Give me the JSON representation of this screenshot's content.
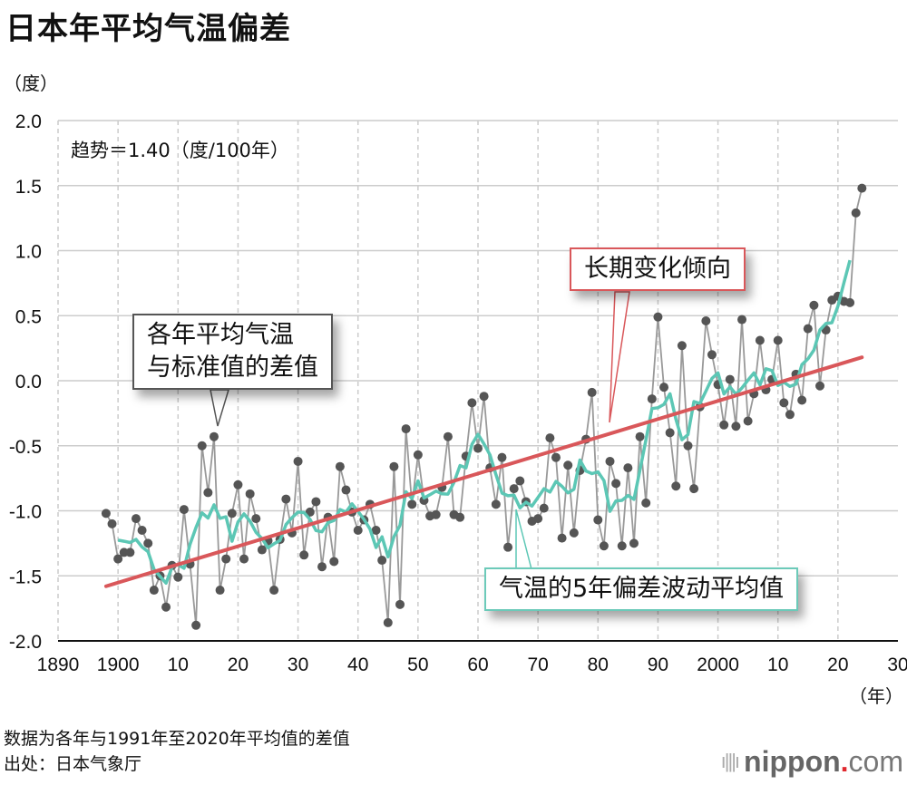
{
  "title": "日本年平均气温偏差",
  "y_unit": "（度）",
  "x_unit": "（年）",
  "notes": [
    "数据为各年与1991年至2020年平均值的差值",
    "出处：日本气象厅"
  ],
  "logo": {
    "name": "nippon",
    "dot": ".",
    "suffix": "com",
    "dot_color": "#e0282e"
  },
  "colors": {
    "points": "#555555",
    "annual_line": "#999999",
    "moving_avg": "#5cc7b5",
    "trend": "#d9575a",
    "grid": "#cccccc"
  },
  "chart_data": {
    "type": "line",
    "title": "日本年平均气温偏差",
    "xlabel": "（年）",
    "ylabel": "（度）",
    "xlim": [
      1890,
      2030
    ],
    "ylim": [
      -2.0,
      2.0
    ],
    "grid": true,
    "x_ticks": [
      1890,
      1900,
      1910,
      1920,
      1930,
      1940,
      1950,
      1960,
      1970,
      1980,
      1990,
      2000,
      2010,
      2020,
      2030
    ],
    "x_tick_labels": [
      "1890",
      "1900",
      "10",
      "20",
      "30",
      "40",
      "50",
      "60",
      "70",
      "80",
      "90",
      "2000",
      "10",
      "20",
      "30"
    ],
    "y_ticks": [
      2.0,
      1.5,
      1.0,
      0.5,
      0.0,
      -0.5,
      -1.0,
      -1.5,
      -2.0
    ],
    "y_tick_labels": [
      "2.0",
      "1.5",
      "1.0",
      "0.5",
      "0.0",
      "-0.5",
      "-1.0",
      "-1.5",
      "-2.0"
    ],
    "trend_annotation": "趋势＝1.40（度/100年）",
    "trend": {
      "rate_per_100yr": 1.4,
      "start": [
        1898,
        -1.58
      ],
      "end": [
        2024,
        0.18
      ]
    },
    "moving_average_window": 5,
    "x_start": 1898,
    "series": [
      {
        "name": "各年平均气温与标准值的差值",
        "values": [
          -1.02,
          -1.1,
          -1.37,
          -1.32,
          -1.32,
          -1.06,
          -1.15,
          -1.25,
          -1.61,
          -1.5,
          -1.74,
          -1.42,
          -1.51,
          -0.99,
          -1.41,
          -1.88,
          -0.5,
          -0.86,
          -0.43,
          -1.61,
          -1.37,
          -1.02,
          -0.8,
          -1.37,
          -0.87,
          -1.06,
          -1.3,
          -1.23,
          -1.61,
          -1.22,
          -0.91,
          -1.17,
          -0.62,
          -1.34,
          -1.01,
          -0.93,
          -1.43,
          -1.05,
          -1.39,
          -0.66,
          -0.84,
          -1.01,
          -1.15,
          -1.07,
          -0.95,
          -1.15,
          -1.38,
          -1.86,
          -0.66,
          -1.72,
          -0.37,
          -0.95,
          -0.57,
          -0.92,
          -1.04,
          -1.03,
          -0.82,
          -0.43,
          -1.03,
          -1.05,
          -0.58,
          -0.17,
          -0.52,
          -0.12,
          -0.67,
          -0.95,
          -0.59,
          -1.28,
          -0.83,
          -0.77,
          -0.93,
          -1.08,
          -1.06,
          -0.98,
          -0.44,
          -0.59,
          -1.21,
          -0.65,
          -1.17,
          -0.69,
          -0.45,
          -0.09,
          -1.07,
          -1.27,
          -0.62,
          -0.79,
          -1.27,
          -0.67,
          -1.25,
          -0.43,
          -0.94,
          -0.14,
          0.49,
          -0.05,
          -0.4,
          -0.81,
          0.27,
          -0.5,
          -0.83,
          -0.2,
          0.46,
          0.2,
          -0.03,
          -0.34,
          0.01,
          -0.35,
          0.47,
          -0.31,
          -0.1,
          0.31,
          -0.07,
          0.01,
          0.31,
          -0.17,
          -0.26,
          0.05,
          -0.15,
          0.4,
          0.58,
          -0.04,
          0.39,
          0.62,
          0.65,
          0.61,
          0.6,
          1.29,
          1.48
        ]
      },
      {
        "name": "气温的5年偏差波动平均值",
        "derived": "centered 5-year moving average"
      },
      {
        "name": "长期变化倾向",
        "derived": "linear trend"
      }
    ],
    "annotations": [
      {
        "text": "各年平均气温\n与标准值的差值",
        "line1": "各年平均气温",
        "line2": "与标准值的差值",
        "target": "annual points"
      },
      {
        "text": "长期变化倾向",
        "target": "trend line"
      },
      {
        "text": "气温的5年偏差波动平均值",
        "target": "moving average"
      }
    ]
  }
}
